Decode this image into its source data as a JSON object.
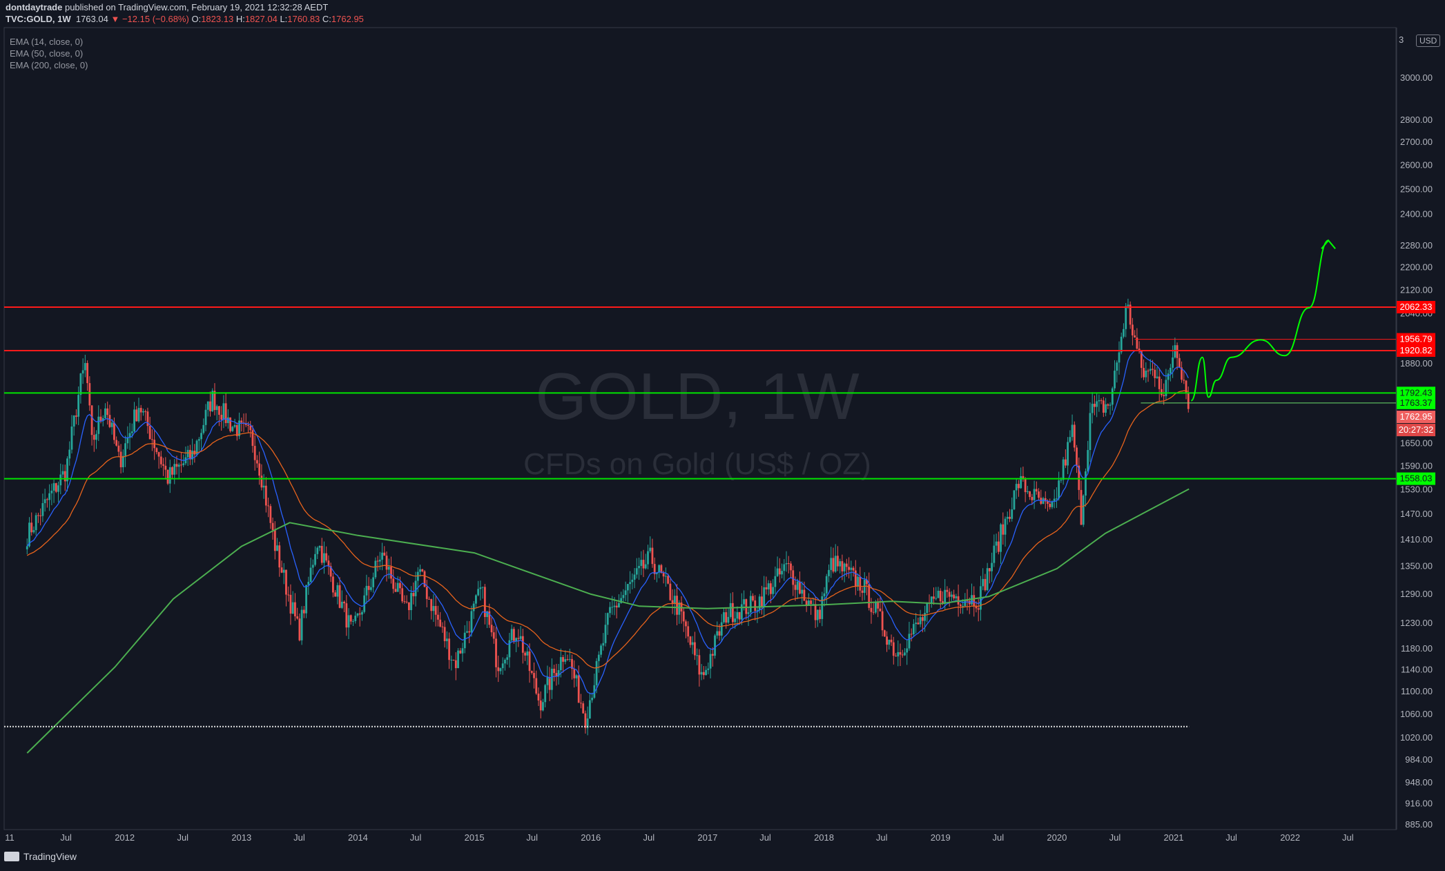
{
  "header": {
    "author": "dontdaytrade",
    "published": "published on TradingView.com, February 19, 2021 12:32:28 AEDT",
    "symbol": "TVC:GOLD, 1W",
    "last": "1763.04",
    "change": "−12.15 (−0.68%)",
    "o_label": "O:",
    "o": "1823.13",
    "h_label": "H:",
    "h": "1827.04",
    "l_label": "L:",
    "l": "1760.83",
    "c_label": "C:",
    "c": "1762.95"
  },
  "indicators": [
    "EMA (14, close, 0)",
    "EMA (50, close, 0)",
    "EMA (200, close, 0)"
  ],
  "watermark": {
    "title": "GOLD, 1W",
    "subtitle": "CFDs on Gold (US$ / OZ)"
  },
  "currency": "USD",
  "footer": {
    "brand": "TradingView"
  },
  "colors": {
    "bg": "#131722",
    "up": "#26a69a",
    "down": "#ef5350",
    "ema14": "#2962ff",
    "ema50": "#e8631c",
    "ema200": "#4caf50",
    "resistance": "#ff1a1a",
    "support": "#00e600",
    "projection": "#00ff00"
  },
  "chart_data": {
    "type": "candlestick",
    "interval": "1W",
    "y_scale": "log",
    "y_ticks": [
      3000,
      2800,
      2700,
      2600,
      2500,
      2400,
      2280,
      2200,
      2120,
      2040,
      1880,
      1650,
      1590,
      1530,
      1470,
      1410,
      1350,
      1290,
      1230,
      1180,
      1140,
      1100,
      1060,
      1020,
      984,
      948,
      916,
      885
    ],
    "y_top_label": "3",
    "x_ticks": [
      "11",
      "Jul",
      "2012",
      "Jul",
      "2013",
      "Jul",
      "2014",
      "Jul",
      "2015",
      "Jul",
      "2016",
      "Jul",
      "2017",
      "Jul",
      "2018",
      "Jul",
      "2019",
      "Jul",
      "2020",
      "Jul",
      "2021",
      "Jul",
      "2022",
      "Jul"
    ],
    "x_range": [
      "2011-03",
      "2022-12"
    ],
    "price_series": [
      [
        "2011-03-01",
        1420
      ],
      [
        "2011-05-01",
        1500
      ],
      [
        "2011-07-01",
        1580
      ],
      [
        "2011-08-15",
        1820
      ],
      [
        "2011-09-01",
        1880
      ],
      [
        "2011-09-20",
        1650
      ],
      [
        "2011-11-01",
        1760
      ],
      [
        "2011-12-15",
        1600
      ],
      [
        "2012-02-15",
        1760
      ],
      [
        "2012-05-15",
        1560
      ],
      [
        "2012-08-01",
        1620
      ],
      [
        "2012-10-01",
        1780
      ],
      [
        "2012-12-01",
        1700
      ],
      [
        "2013-02-01",
        1670
      ],
      [
        "2013-03-01",
        1580
      ],
      [
        "2013-04-15",
        1400
      ],
      [
        "2013-06-30",
        1210
      ],
      [
        "2013-08-25",
        1410
      ],
      [
        "2013-12-15",
        1210
      ],
      [
        "2014-03-15",
        1380
      ],
      [
        "2014-06-01",
        1250
      ],
      [
        "2014-07-10",
        1340
      ],
      [
        "2014-11-01",
        1150
      ],
      [
        "2015-01-22",
        1300
      ],
      [
        "2015-03-15",
        1150
      ],
      [
        "2015-05-15",
        1220
      ],
      [
        "2015-07-25",
        1080
      ],
      [
        "2015-10-15",
        1180
      ],
      [
        "2015-12-15",
        1055
      ],
      [
        "2016-03-01",
        1250
      ],
      [
        "2016-07-06",
        1370
      ],
      [
        "2016-10-01",
        1260
      ],
      [
        "2016-12-15",
        1125
      ],
      [
        "2017-03-01",
        1250
      ],
      [
        "2017-06-01",
        1270
      ],
      [
        "2017-09-08",
        1350
      ],
      [
        "2017-12-12",
        1240
      ],
      [
        "2018-01-25",
        1360
      ],
      [
        "2018-05-01",
        1310
      ],
      [
        "2018-08-16",
        1170
      ],
      [
        "2019-01-01",
        1290
      ],
      [
        "2019-05-01",
        1280
      ],
      [
        "2019-09-04",
        1550
      ],
      [
        "2019-12-15",
        1470
      ],
      [
        "2020-02-20",
        1690
      ],
      [
        "2020-03-16",
        1460
      ],
      [
        "2020-04-15",
        1740
      ],
      [
        "2020-06-15",
        1760
      ],
      [
        "2020-08-07",
        2070
      ],
      [
        "2020-09-25",
        1850
      ],
      [
        "2020-11-10",
        1860
      ],
      [
        "2020-11-30",
        1770
      ],
      [
        "2021-01-06",
        1950
      ],
      [
        "2021-02-18",
        1763
      ]
    ],
    "ema200_series": [
      [
        "2011-03-01",
        995
      ],
      [
        "2011-12-01",
        1145
      ],
      [
        "2012-06-01",
        1280
      ],
      [
        "2013-01-01",
        1395
      ],
      [
        "2013-06-01",
        1450
      ],
      [
        "2014-01-01",
        1420
      ],
      [
        "2015-01-01",
        1380
      ],
      [
        "2016-01-01",
        1290
      ],
      [
        "2016-06-01",
        1265
      ],
      [
        "2017-01-01",
        1260
      ],
      [
        "2018-01-01",
        1268
      ],
      [
        "2018-08-01",
        1275
      ],
      [
        "2019-01-01",
        1270
      ],
      [
        "2019-06-01",
        1285
      ],
      [
        "2020-01-01",
        1345
      ],
      [
        "2020-06-01",
        1425
      ],
      [
        "2021-02-18",
        1532
      ]
    ],
    "levels": [
      {
        "value": 2062.33,
        "label": "2062.33",
        "kind": "resistance"
      },
      {
        "value": 1956.79,
        "label": "1956.79",
        "kind": "resistance"
      },
      {
        "value": 1920.82,
        "label": "1920.82",
        "kind": "resistance"
      },
      {
        "value": 1792.43,
        "label": "1792.43",
        "kind": "support"
      },
      {
        "value": 1763.37,
        "label": "1763.37",
        "kind": "support"
      },
      {
        "value": 1558.03,
        "label": "1558.03",
        "kind": "support"
      },
      {
        "value": 1039,
        "label": "",
        "kind": "dotted"
      }
    ],
    "price_tags": [
      {
        "label": "1762.95",
        "kind": "last-price"
      },
      {
        "label": "20:27:32",
        "kind": "countdown"
      }
    ],
    "projection": [
      [
        "2021-02-25",
        1770
      ],
      [
        "2021-04-01",
        1900
      ],
      [
        "2021-04-20",
        1780
      ],
      [
        "2021-05-15",
        1830
      ],
      [
        "2021-07-01",
        1900
      ],
      [
        "2021-10-01",
        1955
      ],
      [
        "2021-12-15",
        1905
      ],
      [
        "2022-03-01",
        2060
      ],
      [
        "2022-05-01",
        2300
      ]
    ]
  }
}
